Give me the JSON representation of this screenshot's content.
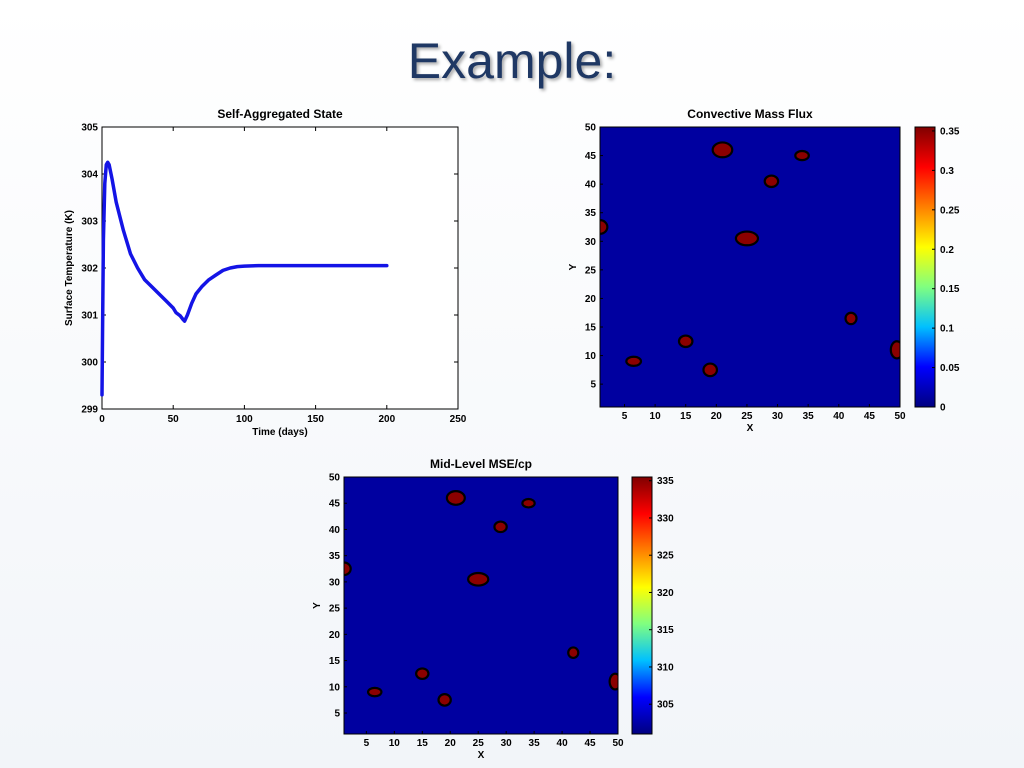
{
  "slide": {
    "title": "Example:"
  },
  "colors": {
    "line": "#1414e6",
    "field_background": "#0000a0",
    "blob_fill": "#8b0000",
    "blob_outline": "#000000",
    "colorbar": [
      "#000080",
      "#0000ff",
      "#00c0ff",
      "#80ff80",
      "#ffff00",
      "#ff8000",
      "#ff0000",
      "#800000"
    ]
  },
  "chart_data": [
    {
      "type": "line",
      "title": "Self-Aggregated State",
      "xlabel": "Time (days)",
      "ylabel": "Surface Temperature (K)",
      "xlim": [
        0,
        250
      ],
      "ylim": [
        299,
        305
      ],
      "xticks": [
        0,
        50,
        100,
        150,
        200,
        250
      ],
      "yticks": [
        299,
        300,
        301,
        302,
        303,
        304,
        305
      ],
      "grid": false,
      "series": [
        {
          "x": [
            0,
            0.5,
            1,
            2,
            3,
            4,
            5,
            7,
            10,
            15,
            20,
            25,
            30,
            35,
            40,
            45,
            50,
            52,
            55,
            57,
            58,
            60,
            63,
            66,
            70,
            75,
            80,
            85,
            90,
            95,
            100,
            110,
            120,
            150,
            200
          ],
          "values": [
            299.3,
            301.0,
            302.6,
            303.8,
            304.2,
            304.25,
            304.2,
            303.9,
            303.4,
            302.8,
            302.3,
            302.0,
            301.75,
            301.6,
            301.45,
            301.3,
            301.15,
            301.05,
            300.98,
            300.9,
            300.87,
            301.0,
            301.25,
            301.45,
            301.6,
            301.75,
            301.85,
            301.95,
            302.0,
            302.03,
            302.04,
            302.05,
            302.05,
            302.05,
            302.05
          ]
        }
      ]
    },
    {
      "type": "heatmap",
      "title": "Convective Mass Flux",
      "xlabel": "X",
      "ylabel": "Y",
      "xlim": [
        1,
        50
      ],
      "ylim": [
        1,
        50
      ],
      "xticks": [
        5,
        10,
        15,
        20,
        25,
        30,
        35,
        40,
        45,
        50
      ],
      "yticks": [
        5,
        10,
        15,
        20,
        25,
        30,
        35,
        40,
        45,
        50
      ],
      "colorbar": {
        "min": 0,
        "max": 0.355,
        "ticks": [
          "0",
          "0.05",
          "0.1",
          "0.15",
          "0.2",
          "0.25",
          "0.3",
          "0.35"
        ]
      },
      "hotspots": [
        {
          "x": 21,
          "y": 46,
          "rx": 1.6,
          "ry": 1.3
        },
        {
          "x": 34,
          "y": 45,
          "rx": 1.1,
          "ry": 0.8
        },
        {
          "x": 29,
          "y": 40.5,
          "rx": 1.1,
          "ry": 1.0
        },
        {
          "x": 1,
          "y": 32.5,
          "rx": 1.2,
          "ry": 1.2
        },
        {
          "x": 25,
          "y": 30.5,
          "rx": 1.8,
          "ry": 1.2
        },
        {
          "x": 42,
          "y": 16.5,
          "rx": 0.9,
          "ry": 1.0
        },
        {
          "x": 15,
          "y": 12.5,
          "rx": 1.1,
          "ry": 1.0
        },
        {
          "x": 49.5,
          "y": 11,
          "rx": 1.0,
          "ry": 1.5
        },
        {
          "x": 6.5,
          "y": 9,
          "rx": 1.2,
          "ry": 0.8
        },
        {
          "x": 19,
          "y": 7.5,
          "rx": 1.1,
          "ry": 1.1
        }
      ]
    },
    {
      "type": "heatmap",
      "title": "Mid-Level MSE/cp",
      "xlabel": "X",
      "ylabel": "Y",
      "xlim": [
        1,
        50
      ],
      "ylim": [
        1,
        50
      ],
      "xticks": [
        5,
        10,
        15,
        20,
        25,
        30,
        35,
        40,
        45,
        50
      ],
      "yticks": [
        5,
        10,
        15,
        20,
        25,
        30,
        35,
        40,
        45,
        50
      ],
      "colorbar": {
        "min": 301,
        "max": 335.5,
        "ticks": [
          "305",
          "310",
          "315",
          "320",
          "325",
          "330",
          "335"
        ]
      },
      "hotspots": [
        {
          "x": 21,
          "y": 46,
          "rx": 1.6,
          "ry": 1.3
        },
        {
          "x": 34,
          "y": 45,
          "rx": 1.1,
          "ry": 0.8
        },
        {
          "x": 29,
          "y": 40.5,
          "rx": 1.1,
          "ry": 1.0
        },
        {
          "x": 1,
          "y": 32.5,
          "rx": 1.2,
          "ry": 1.2
        },
        {
          "x": 25,
          "y": 30.5,
          "rx": 1.8,
          "ry": 1.2
        },
        {
          "x": 42,
          "y": 16.5,
          "rx": 0.9,
          "ry": 1.0
        },
        {
          "x": 15,
          "y": 12.5,
          "rx": 1.1,
          "ry": 1.0
        },
        {
          "x": 49.5,
          "y": 11,
          "rx": 1.0,
          "ry": 1.5
        },
        {
          "x": 6.5,
          "y": 9,
          "rx": 1.2,
          "ry": 0.8
        },
        {
          "x": 19,
          "y": 7.5,
          "rx": 1.1,
          "ry": 1.1
        }
      ]
    }
  ]
}
